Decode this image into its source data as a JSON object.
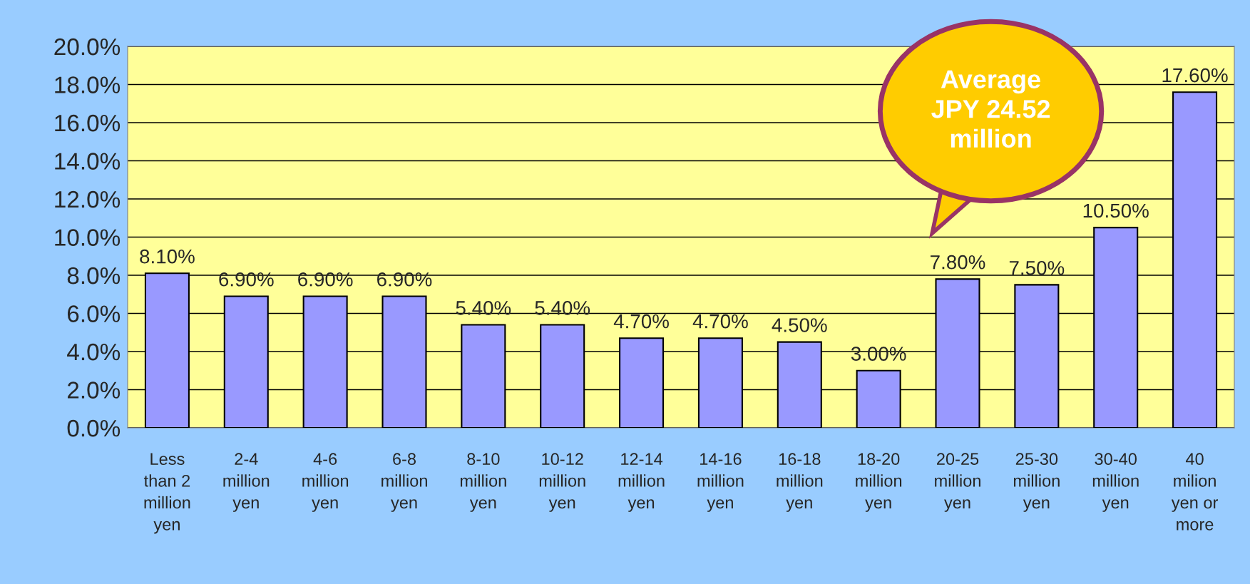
{
  "chart_data": {
    "type": "bar",
    "categories": [
      "Less\nthan 2\nmillion\nyen",
      "2-4\nmillion\nyen",
      "4-6\nmillion\nyen",
      "6-8\nmillion\nyen",
      "8-10\nmillion\nyen",
      "10-12\nmillion\nyen",
      "12-14\nmillion\nyen",
      "14-16\nmillion\nyen",
      "16-18\nmillion\nyen",
      "18-20\nmillion\nyen",
      "20-25\nmillion\nyen",
      "25-30\nmillion\nyen",
      "30-40\nmillion\nyen",
      "40\nmilion\nyen or\nmore"
    ],
    "values": [
      8.1,
      6.9,
      6.9,
      6.9,
      5.4,
      5.4,
      4.7,
      4.7,
      4.5,
      3.0,
      7.8,
      7.5,
      10.5,
      17.6
    ],
    "value_labels": [
      "8.10%",
      "6.90%",
      "6.90%",
      "6.90%",
      "5.40%",
      "5.40%",
      "4.70%",
      "4.70%",
      "4.50%",
      "3.00%",
      "7.80%",
      "7.50%",
      "10.50%",
      "17.60%"
    ],
    "color": "#9999ff",
    "ylim": [
      0,
      20
    ],
    "yticks": [
      {
        "value": 0,
        "label": "0.0%"
      },
      {
        "value": 2,
        "label": "2.0%"
      },
      {
        "value": 4,
        "label": "4.0%"
      },
      {
        "value": 6,
        "label": "6.0%"
      },
      {
        "value": 8,
        "label": "8.0%"
      },
      {
        "value": 10,
        "label": "10.0%"
      },
      {
        "value": 12,
        "label": "12.0%"
      },
      {
        "value": 14,
        "label": "14.0%"
      },
      {
        "value": 16,
        "label": "16.0%"
      },
      {
        "value": 18,
        "label": "18.0%"
      },
      {
        "value": 20,
        "label": "20.0%"
      }
    ],
    "grid": "y",
    "legend": false,
    "annotations": [
      "Average\nJPY 24.52\nmillion"
    ]
  }
}
